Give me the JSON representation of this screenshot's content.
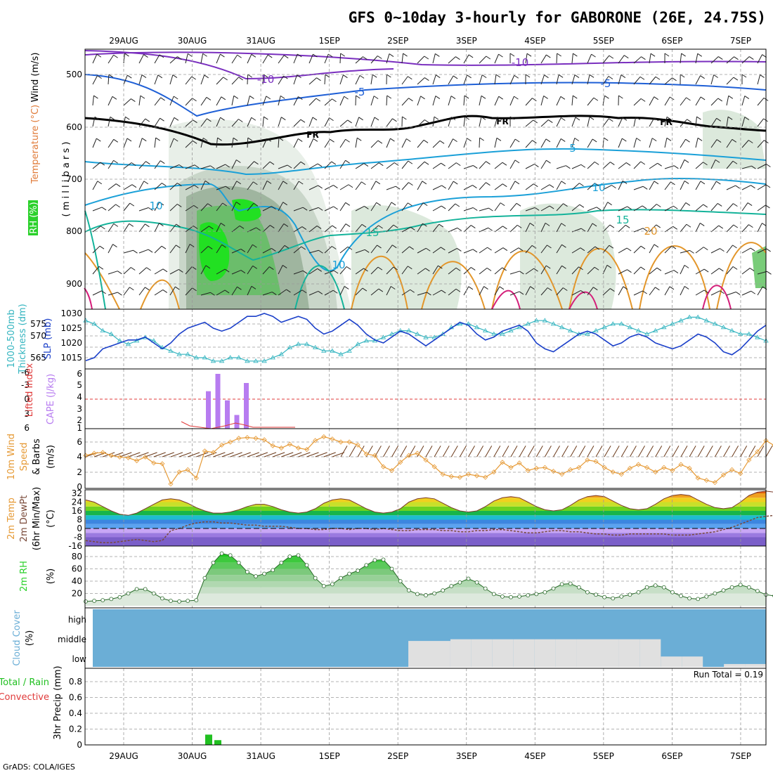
{
  "title": "GFS 0~10day 3-hourly for GABORONE (26E, 24.75S)",
  "credit": "GrADS: COLA/IGES",
  "date_labels": [
    "29AUG",
    "30AUG",
    "31AUG",
    "1SEP",
    "2SEP",
    "3SEP",
    "4SEP",
    "5SEP",
    "6SEP",
    "7SEP"
  ],
  "colors": {
    "temp_contour_cold": "#7a2fbf",
    "temp_contour_mid": "#1e5fd6",
    "temp_contour_cool": "#1aa0d8",
    "temp_contour_warm": "#14b39a",
    "temp_contour_hot": "#e3962a",
    "freezing_line": "#000000",
    "rh_fill": "#2bd12b",
    "thickness": "#35b5c0",
    "slp": "#1a3fc9",
    "cape": "#b77cf0",
    "lifted_index": "#e03a3a",
    "wind_speed": "#e69a36",
    "dewpoint": "#7a4a3a",
    "rh_area": "#5cc85c",
    "cloud_bg": "#6baed6",
    "cloud_fill": "#e0e0e0",
    "precip": "#21c021"
  },
  "panels": {
    "upper_air": {
      "ylabels": [
        {
          "text": "Wind (m/s)",
          "color": "#000000"
        },
        {
          "text": "Temperature (°C)",
          "color": "#e07b39"
        },
        {
          "text": "RH (%)",
          "color": "#2bd12b"
        }
      ],
      "unit_label": "( m i l l i b a r s )",
      "pressure_ticks": [
        "500",
        "600",
        "700",
        "800",
        "900"
      ],
      "contour_labels": [
        "-10",
        "-10",
        "-5",
        "-5",
        "FR",
        "FR",
        "FR",
        "5",
        "10",
        "10",
        "10",
        "15",
        "15",
        "20"
      ]
    },
    "thickness_slp": {
      "ylabels": [
        {
          "text": "1000-500mb",
          "color": "#35b5c0"
        },
        {
          "text": "Thickness (dm)",
          "color": "#35b5c0"
        },
        {
          "text": "SLP (mb)",
          "color": "#1a3fc9"
        }
      ],
      "left_ticks": [
        "575",
        "570",
        "565"
      ],
      "right_ticks": [
        "1030",
        "1025",
        "1020",
        "1015"
      ]
    },
    "cape_li": {
      "ylabels": [
        {
          "text": "Lifted Index",
          "color": "#e03a3a"
        },
        {
          "text": "CAPE (J/kg)",
          "color": "#b77cf0"
        }
      ],
      "left_ticks": [
        "-6",
        "-3",
        "0",
        "3",
        "6"
      ],
      "right_ticks": [
        "6",
        "5",
        "4",
        "3",
        "2",
        "1"
      ]
    },
    "wind10m": {
      "ylabels": [
        {
          "text": "10m Wind",
          "color": "#e69a36"
        },
        {
          "text": "Speed",
          "color": "#e69a36"
        },
        {
          "text": "& Barbs",
          "color": "#000000"
        },
        {
          "text": "(m/s)",
          "color": "#000000"
        }
      ],
      "ticks": [
        "6",
        "4",
        "2",
        "0"
      ]
    },
    "temp2m": {
      "ylabels": [
        {
          "text": "2m Temp",
          "color": "#e69a36"
        },
        {
          "text": "2m DewPt",
          "color": "#7a4a3a"
        },
        {
          "text": "(6hr Min/Max)",
          "color": "#000000"
        },
        {
          "text": "(°C)",
          "color": "#000000"
        }
      ],
      "ticks": [
        "32",
        "24",
        "16",
        "8",
        "0",
        "-8",
        "-16"
      ]
    },
    "rh2m": {
      "ylabels": [
        {
          "text": "2m RH",
          "color": "#2bd12b"
        },
        {
          "text": "(%)",
          "color": "#000000"
        }
      ],
      "ticks": [
        "80",
        "60",
        "40",
        "20"
      ]
    },
    "cloud": {
      "ylabels": [
        {
          "text": "Cloud Cover",
          "color": "#6baed6"
        },
        {
          "text": "(%)",
          "color": "#000000"
        }
      ],
      "levels": [
        "high",
        "middle",
        "low"
      ]
    },
    "precip": {
      "ylabels": [
        {
          "text": "Total / Rain",
          "color": "#21c021"
        },
        {
          "text": "Convective",
          "color": "#e03a3a"
        },
        {
          "text": "3hr Precip (mm)",
          "color": "#000000"
        }
      ],
      "ticks": [
        "0.8",
        "0.6",
        "0.4",
        "0.2",
        "0"
      ],
      "run_total": "Run Total = 0.19"
    }
  },
  "chart_data": [
    {
      "type": "line",
      "panel": "thickness_slp",
      "x_unit": "3-hourly step (0 = 28 Aug 12Z)",
      "x": [
        0,
        1,
        2,
        3,
        4,
        5,
        6,
        7,
        8,
        9,
        10,
        11,
        12,
        13,
        14,
        15,
        16,
        17,
        18,
        19,
        20,
        21,
        22,
        23,
        24,
        25,
        26,
        27,
        28,
        29,
        30,
        31,
        32,
        33,
        34,
        35,
        36,
        37,
        38,
        39,
        40,
        41,
        42,
        43,
        44,
        45,
        46,
        47,
        48,
        49,
        50,
        51,
        52,
        53,
        54,
        55,
        56,
        57,
        58,
        59,
        60,
        61,
        62,
        63,
        64,
        65,
        66,
        67,
        68,
        69,
        70,
        71,
        72,
        73,
        74,
        75,
        76,
        77,
        78,
        79,
        80
      ],
      "series": [
        {
          "name": "SLP (mb)",
          "values": [
            1014,
            1015,
            1018,
            1019,
            1020,
            1021,
            1021,
            1022,
            1020,
            1018,
            1020,
            1023,
            1025,
            1026,
            1027,
            1025,
            1024,
            1025,
            1027,
            1029,
            1029,
            1030,
            1029,
            1027,
            1028,
            1029,
            1028,
            1025,
            1023,
            1024,
            1026,
            1028,
            1026,
            1023,
            1021,
            1020,
            1022,
            1024,
            1023,
            1021,
            1019,
            1021,
            1023,
            1025,
            1027,
            1026,
            1023,
            1021,
            1022,
            1024,
            1025,
            1026,
            1024,
            1020,
            1018,
            1017,
            1019,
            1021,
            1023,
            1024,
            1023,
            1021,
            1019,
            1020,
            1022,
            1023,
            1022,
            1020,
            1019,
            1018,
            1019,
            1021,
            1023,
            1022,
            1020,
            1017,
            1016,
            1018,
            1021,
            1024,
            1026
          ]
        },
        {
          "name": "1000-500mb Thickness (dm)",
          "values": [
            576,
            575,
            573,
            572,
            570,
            569,
            570,
            571,
            570,
            568,
            567,
            566,
            566,
            565,
            565,
            564,
            564,
            565,
            565,
            564,
            564,
            564,
            565,
            566,
            568,
            569,
            569,
            568,
            567,
            567,
            566,
            567,
            569,
            570,
            570,
            571,
            572,
            573,
            573,
            572,
            571,
            571,
            572,
            574,
            575,
            575,
            574,
            573,
            572,
            572,
            573,
            574,
            575,
            576,
            576,
            575,
            574,
            573,
            572,
            572,
            573,
            574,
            575,
            575,
            574,
            573,
            572,
            573,
            574,
            575,
            576,
            577,
            577,
            576,
            575,
            574,
            573,
            572,
            572,
            571,
            570
          ]
        }
      ]
    },
    {
      "type": "bar",
      "panel": "cape_li",
      "x": [
        15,
        16,
        17,
        18,
        19
      ],
      "series": [
        {
          "name": "CAPE (J/kg)",
          "values": [
            4.1,
            6.0,
            3.1,
            1.5,
            5.0
          ]
        }
      ]
    },
    {
      "type": "line",
      "panel": "wind10m",
      "x_unit": "3-hourly step",
      "series": [
        {
          "name": "10m Wind Speed (m/s)",
          "values": [
            4.2,
            4.5,
            4.6,
            4.2,
            4.0,
            3.9,
            3.5,
            4.0,
            3.2,
            3.1,
            0.4,
            2.0,
            2.3,
            1.2,
            4.8,
            4.6,
            5.6,
            6.0,
            6.5,
            6.6,
            6.5,
            6.3,
            5.5,
            5.2,
            5.7,
            5.2,
            5.0,
            6.2,
            6.7,
            6.4,
            6.0,
            6.0,
            5.6,
            4.4,
            4.2,
            2.7,
            2.2,
            3.3,
            4.2,
            4.5,
            3.6,
            2.7,
            1.7,
            1.4,
            1.3,
            1.7,
            1.5,
            1.3,
            2.0,
            3.3,
            2.6,
            3.2,
            2.2,
            2.5,
            2.6,
            2.1,
            1.7,
            2.3,
            2.6,
            3.6,
            3.4,
            2.6,
            2.0,
            1.7,
            2.5,
            3.0,
            2.6,
            2.0,
            2.6,
            2.2,
            3.0,
            2.5,
            1.2,
            0.9,
            0.6,
            1.6,
            2.3,
            1.8,
            3.6,
            4.7,
            6.2,
            5.5,
            5.8,
            6.0,
            5.8
          ]
        }
      ]
    },
    {
      "type": "area",
      "panel": "temp2m",
      "series": [
        {
          "name": "2m Temp (°C)",
          "values": [
            26,
            24,
            20,
            16,
            13,
            12,
            14,
            18,
            22,
            26,
            27,
            26,
            23,
            19,
            16,
            14,
            14,
            15,
            17,
            20,
            22,
            22,
            20,
            17,
            15,
            14,
            15,
            18,
            23,
            26,
            27,
            26,
            22,
            18,
            15,
            14,
            15,
            18,
            24,
            27,
            28,
            27,
            23,
            19,
            16,
            15,
            16,
            20,
            25,
            28,
            29,
            28,
            24,
            20,
            17,
            16,
            17,
            21,
            26,
            29,
            30,
            29,
            25,
            21,
            18,
            17,
            18,
            22,
            27,
            30,
            31,
            30,
            26,
            22,
            19,
            18,
            19,
            24,
            30,
            33,
            34,
            33,
            29,
            25,
            21,
            18,
            16
          ]
        },
        {
          "name": "2m DewPt (°C)",
          "values": [
            -11,
            -12,
            -13,
            -13,
            -12,
            -11,
            -10,
            -11,
            -12,
            -11,
            -2,
            0,
            3,
            5,
            6,
            6,
            5,
            5,
            4,
            3,
            3,
            2,
            2,
            2,
            1,
            0,
            0,
            -1,
            -1,
            0,
            0,
            -1,
            0,
            0,
            -1,
            0,
            -1,
            -2,
            -2,
            -1,
            -1,
            -1,
            -2,
            -2,
            -3,
            -3,
            -2,
            -2,
            -1,
            -1,
            -2,
            -3,
            -4,
            -4,
            -3,
            -2,
            -2,
            -3,
            -3,
            -4,
            -5,
            -5,
            -6,
            -6,
            -5,
            -5,
            -5,
            -5,
            -5,
            -6,
            -6,
            -6,
            -5,
            -4,
            -3,
            -1,
            1,
            4,
            7,
            10,
            11,
            12,
            12,
            12
          ]
        }
      ]
    },
    {
      "type": "area",
      "panel": "rh2m",
      "series": [
        {
          "name": "2m RH (%)",
          "values": [
            7,
            8,
            9,
            11,
            14,
            20,
            27,
            27,
            20,
            12,
            8,
            7,
            8,
            9,
            45,
            70,
            85,
            82,
            70,
            55,
            48,
            52,
            58,
            70,
            80,
            82,
            66,
            45,
            32,
            35,
            45,
            52,
            57,
            66,
            74,
            75,
            60,
            40,
            25,
            19,
            17,
            20,
            25,
            32,
            38,
            44,
            38,
            28,
            19,
            15,
            14,
            15,
            17,
            19,
            22,
            28,
            35,
            36,
            30,
            22,
            18,
            14,
            12,
            15,
            18,
            22,
            30,
            33,
            30,
            22,
            16,
            12,
            11,
            15,
            20,
            25,
            30,
            34,
            30,
            24,
            18,
            16,
            16,
            20,
            22,
            22,
            19
          ]
        }
      ]
    },
    {
      "type": "bar",
      "panel": "cloud",
      "levels": [
        "high",
        "middle",
        "low"
      ],
      "series": [
        {
          "name": "Low cloud cover (%)",
          "values": [
            0,
            0,
            0,
            0,
            0,
            0,
            0,
            0,
            0,
            0,
            0,
            0,
            0,
            0,
            0,
            45,
            45,
            48,
            48,
            48,
            48,
            48,
            48,
            48,
            48,
            48,
            48,
            18,
            18,
            0,
            5,
            5,
            0
          ]
        }
      ]
    },
    {
      "type": "bar",
      "panel": "precip",
      "series": [
        {
          "name": "3hr Precip (mm)",
          "values": [
            0,
            0,
            0,
            0,
            0,
            0,
            0,
            0,
            0,
            0,
            0,
            0,
            0,
            0,
            0,
            0.13,
            0.06,
            0,
            0
          ]
        }
      ]
    }
  ]
}
